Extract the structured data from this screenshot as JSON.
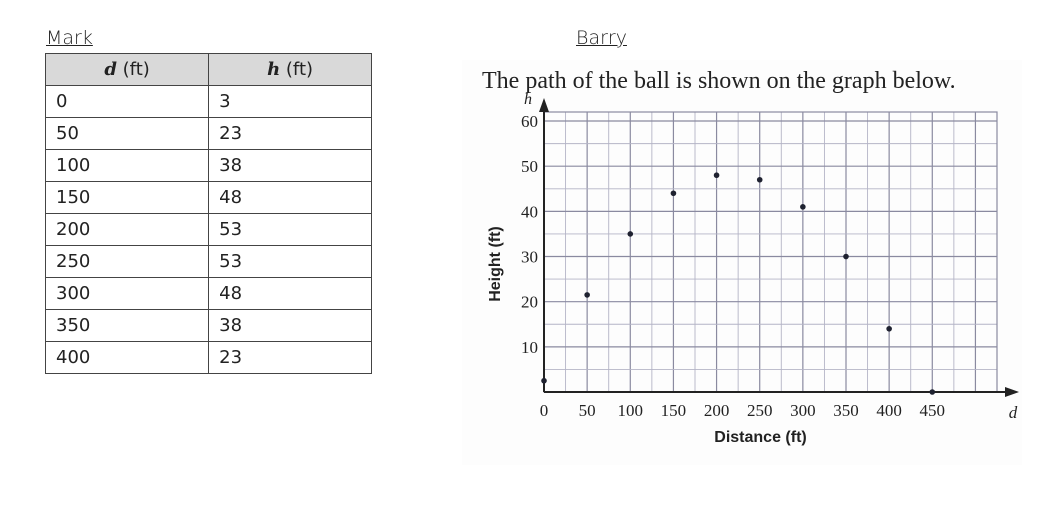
{
  "mark": {
    "name": "Mark",
    "headers": [
      {
        "var": "d",
        "unit": "(ft)"
      },
      {
        "var": "h",
        "unit": "(ft)"
      }
    ],
    "rows": [
      [
        "0",
        "3"
      ],
      [
        "50",
        "23"
      ],
      [
        "100",
        "38"
      ],
      [
        "150",
        "48"
      ],
      [
        "200",
        "53"
      ],
      [
        "250",
        "53"
      ],
      [
        "300",
        "48"
      ],
      [
        "350",
        "38"
      ],
      [
        "400",
        "23"
      ]
    ]
  },
  "barry": {
    "name": "Barry",
    "caption": "The path of the ball is shown on the graph below."
  },
  "chart_data": {
    "type": "scatter",
    "xlabel": "Distance (ft)",
    "ylabel": "Height (ft)",
    "x_axis_var": "d",
    "y_axis_var": "h",
    "xlim": [
      0,
      525
    ],
    "ylim": [
      0,
      62
    ],
    "x_ticks": [
      0,
      50,
      100,
      150,
      200,
      250,
      300,
      350,
      400,
      450
    ],
    "y_ticks": [
      10,
      20,
      30,
      40,
      50,
      60
    ],
    "grid": true,
    "x": [
      0,
      50,
      100,
      150,
      200,
      250,
      300,
      350,
      400,
      450
    ],
    "y": [
      2.5,
      21.5,
      35,
      44,
      48,
      47,
      41,
      30,
      14,
      0
    ]
  }
}
